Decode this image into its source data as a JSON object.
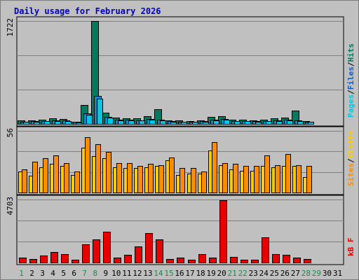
{
  "title": "Daily usage for February 2026",
  "colors": {
    "hits": "#007b5e",
    "files": "#0a8ccd",
    "pages": "#00c8e8",
    "visits": "#ffcc00",
    "sites": "#ff8c00",
    "kbytes": "#e80000",
    "weekend_label": "#1b8a4a",
    "title": "#0000c8",
    "background": "#c0c0c0",
    "gridline": "#808080"
  },
  "panels": {
    "top": {
      "max_label": "1722",
      "legend": [
        {
          "text": "Pages",
          "color": "#00c8e8"
        },
        {
          "text": "/",
          "color": "#000000"
        },
        {
          "text": "Files",
          "color": "#0a5ccd"
        },
        {
          "text": "/",
          "color": "#000000"
        },
        {
          "text": "Hits",
          "color": "#007b5e"
        }
      ]
    },
    "middle": {
      "max_label": "56",
      "legend": [
        {
          "text": "Sites",
          "color": "#ff8c00"
        },
        {
          "text": "/",
          "color": "#000000"
        },
        {
          "text": "Visits",
          "color": "#ffcc00"
        }
      ]
    },
    "bottom": {
      "max_label": "4703",
      "legend": [
        {
          "text": "kB F",
          "color": "#e80000"
        }
      ]
    }
  },
  "chart_data": {
    "type": "bar",
    "title": "Daily usage for February 2026",
    "categories": [
      "1",
      "2",
      "3",
      "4",
      "5",
      "6",
      "7",
      "8",
      "9",
      "10",
      "11",
      "12",
      "13",
      "14",
      "15",
      "16",
      "17",
      "18",
      "19",
      "20",
      "21",
      "22",
      "23",
      "24",
      "25",
      "26",
      "27",
      "28",
      "29",
      "30",
      "31"
    ],
    "weekend_days": [
      "1",
      "7",
      "8",
      "14",
      "15",
      "21",
      "22",
      "28",
      "29"
    ],
    "series": [
      {
        "name": "Hits",
        "panel": "top",
        "max": 1722,
        "values": [
          55,
          60,
          70,
          90,
          80,
          40,
          320,
          1722,
          190,
          110,
          95,
          95,
          130,
          250,
          60,
          55,
          45,
          60,
          120,
          130,
          70,
          70,
          60,
          70,
          90,
          100,
          220,
          50,
          0,
          0,
          0
        ]
      },
      {
        "name": "Files",
        "panel": "top",
        "max": 1722,
        "values": [
          40,
          45,
          50,
          60,
          55,
          30,
          180,
          470,
          120,
          70,
          65,
          60,
          80,
          70,
          45,
          40,
          35,
          45,
          70,
          80,
          50,
          50,
          45,
          50,
          60,
          65,
          60,
          40,
          0,
          0,
          0
        ]
      },
      {
        "name": "Pages",
        "panel": "top",
        "max": 1722,
        "values": [
          35,
          40,
          45,
          50,
          50,
          25,
          150,
          420,
          100,
          60,
          55,
          55,
          70,
          60,
          40,
          35,
          30,
          40,
          60,
          70,
          45,
          45,
          40,
          45,
          50,
          55,
          50,
          35,
          0,
          0,
          0
        ]
      },
      {
        "name": "Visits",
        "panel": "middle",
        "max": 56,
        "values": [
          19,
          15,
          23,
          26,
          24,
          16,
          41,
          33,
          31,
          23,
          22,
          22,
          23,
          24,
          29,
          16,
          17,
          17,
          38,
          25,
          21,
          20,
          20,
          24,
          23,
          24,
          24,
          14,
          0,
          0,
          0
        ]
      },
      {
        "name": "Sites",
        "panel": "middle",
        "max": 56,
        "values": [
          21,
          28,
          31,
          34,
          27,
          19,
          50,
          44,
          37,
          27,
          27,
          24,
          26,
          25,
          32,
          22,
          22,
          19,
          46,
          27,
          26,
          24,
          24,
          34,
          25,
          35,
          25,
          24,
          0,
          0,
          0
        ]
      },
      {
        "name": "kB F",
        "panel": "bottom",
        "max": 4703,
        "values": [
          350,
          270,
          500,
          800,
          650,
          200,
          1350,
          1700,
          2300,
          350,
          600,
          1200,
          2200,
          1700,
          280,
          350,
          190,
          650,
          350,
          4650,
          430,
          200,
          190,
          1900,
          630,
          600,
          350,
          280,
          0,
          0,
          0
        ]
      }
    ]
  }
}
